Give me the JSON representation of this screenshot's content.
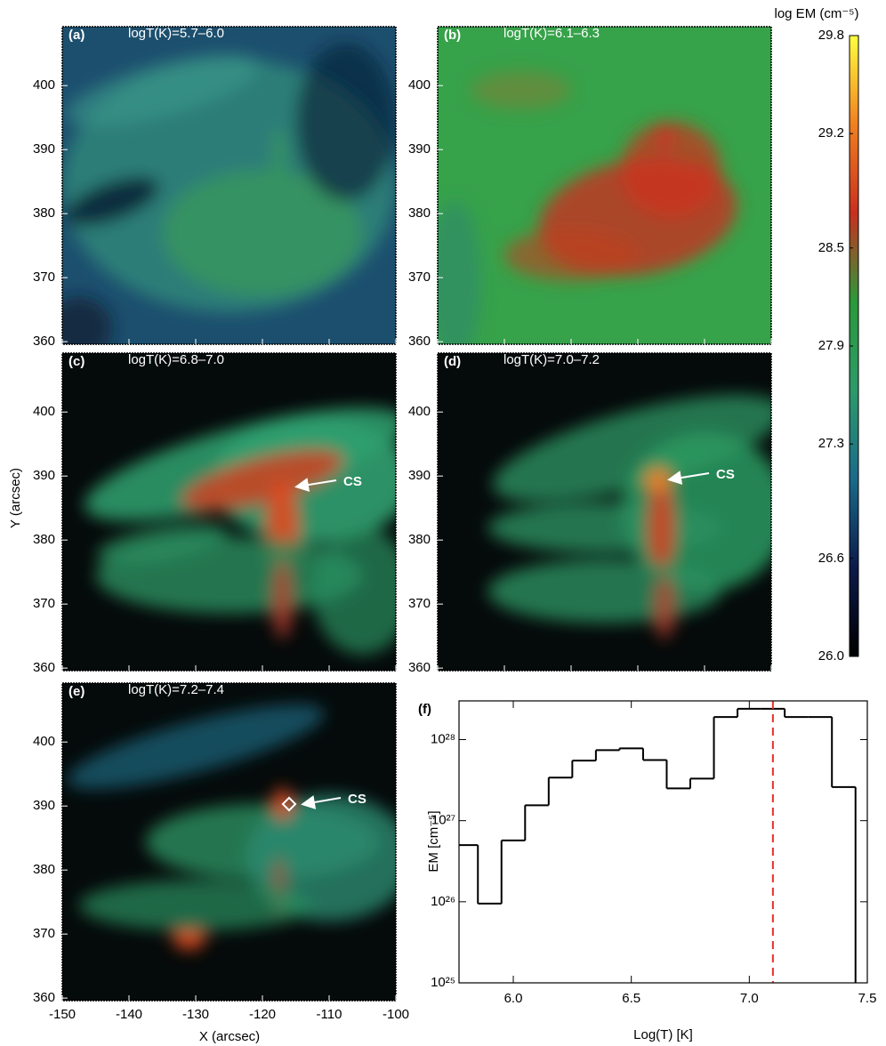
{
  "chart_data": [
    {
      "type": "image",
      "panels": [
        {
          "label": "(a)",
          "title": "logT(K)=5.7–6.0"
        },
        {
          "label": "(b)",
          "title": "logT(K)=6.1–6.3"
        },
        {
          "label": "(c)",
          "title": "logT(K)=6.8–7.0",
          "annotation": "CS"
        },
        {
          "label": "(d)",
          "title": "logT(K)=7.0–7.2",
          "annotation": "CS"
        },
        {
          "label": "(e)",
          "title": "logT(K)=7.2–7.4",
          "annotation": "CS"
        }
      ],
      "xlabel": "X (arcsec)",
      "ylabel": "Y (arcsec)",
      "xlim": [
        -150,
        -100
      ],
      "ylim": [
        359.6,
        409.2
      ],
      "xticks": [
        -150,
        -140,
        -130,
        -120,
        -110,
        -100
      ],
      "yticks": [
        360,
        370,
        380,
        390,
        400
      ]
    },
    {
      "type": "colorbar",
      "title": "log EM (cm⁻⁵)",
      "ylim": [
        26,
        29.8
      ],
      "yticks": [
        29.8,
        29.2,
        28.5,
        27.9,
        27.3,
        26.6,
        {
          "value": 26,
          "label": "26.0"
        }
      ],
      "colors": [
        "#000000",
        "#0c1a4a",
        "#1a6a8a",
        "#2e9a6a",
        "#2a9a3a",
        "#c83020",
        "#f08020",
        "#ffff40"
      ]
    },
    {
      "type": "histogram",
      "label": "(f)",
      "xlabel": "Log(T) [K]",
      "ylabel": "EM [cm⁻⁵]",
      "bins": [
        5.75,
        5.85,
        5.95,
        6.05,
        6.15,
        6.25,
        6.35,
        6.45,
        6.55,
        6.65,
        6.75,
        6.85,
        6.95,
        7.05,
        7.15,
        7.25,
        7.35,
        7.45
      ],
      "values": [
        5e+26,
        9.5e+25,
        5.7e+26,
        1.55e+27,
        3.4e+27,
        5.5e+27,
        7.4e+27,
        7.8e+27,
        5.6e+27,
        2.5e+27,
        3.3e+27,
        1.9e+28,
        2.4e+28,
        2.4e+28,
        1.9e+28,
        1.9e+28,
        2.6e+27
      ],
      "color": "#000000",
      "xlim": [
        5.77,
        7.5
      ],
      "ylim": [
        1e+25,
        3e+28
      ],
      "log_y": true,
      "xticks": [
        {
          "value": 6,
          "label": "6.0"
        },
        6.5,
        {
          "value": 7,
          "label": "7.0"
        },
        7.5
      ],
      "yticks": [
        {
          "value": 1e+25,
          "label": "10²⁵"
        },
        {
          "value": 1e+26,
          "label": "10²⁶"
        },
        {
          "value": 1e+27,
          "label": "10²⁷"
        },
        {
          "value": 1e+28,
          "label": "10²⁸"
        }
      ],
      "vline": 7.1,
      "vline_color": "#e8302a"
    }
  ]
}
